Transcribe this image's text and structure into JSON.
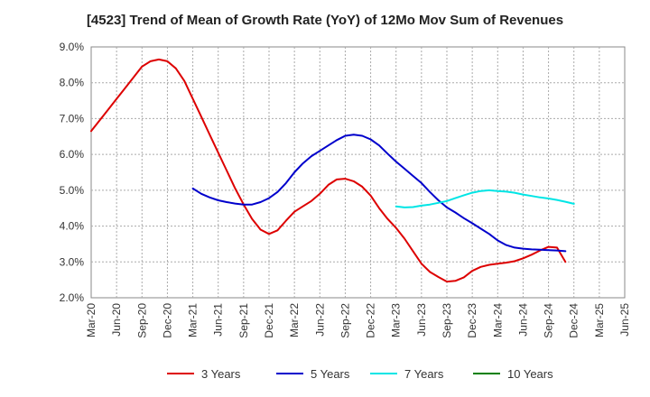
{
  "chart_data": {
    "type": "line",
    "title": "[4523]  Trend of Mean of Growth Rate (YoY) of 12Mo Mov Sum of Revenues",
    "xlabel": "",
    "ylabel": "",
    "ylim": [
      2.0,
      9.0
    ],
    "y_ticks": [
      2.0,
      3.0,
      4.0,
      5.0,
      6.0,
      7.0,
      8.0,
      9.0
    ],
    "y_tick_labels": [
      "2.0%",
      "3.0%",
      "4.0%",
      "5.0%",
      "6.0%",
      "7.0%",
      "8.0%",
      "9.0%"
    ],
    "x_tick_labels": [
      "Mar-20",
      "Jun-20",
      "Sep-20",
      "Dec-20",
      "Mar-21",
      "Jun-21",
      "Sep-21",
      "Dec-21",
      "Mar-22",
      "Jun-22",
      "Sep-22",
      "Dec-22",
      "Mar-23",
      "Jun-23",
      "Sep-23",
      "Dec-23",
      "Mar-24",
      "Jun-24",
      "Sep-24",
      "Dec-24",
      "Mar-25",
      "Jun-25"
    ],
    "grid": true,
    "legend_position": "bottom",
    "series": [
      {
        "name": "3 Years",
        "color": "#dd0000",
        "start_index": 0,
        "values": [
          6.65,
          6.95,
          7.25,
          7.55,
          7.85,
          8.15,
          8.45,
          8.6,
          8.65,
          8.6,
          8.4,
          8.05,
          7.55,
          7.05,
          6.55,
          6.05,
          5.55,
          5.05,
          4.6,
          4.2,
          3.9,
          3.78,
          3.88,
          4.15,
          4.4,
          4.55,
          4.7,
          4.9,
          5.15,
          5.3,
          5.32,
          5.25,
          5.1,
          4.85,
          4.5,
          4.2,
          3.95,
          3.65,
          3.3,
          2.95,
          2.72,
          2.58,
          2.45,
          2.47,
          2.57,
          2.75,
          2.86,
          2.92,
          2.95,
          2.98,
          3.02,
          3.1,
          3.2,
          3.32,
          3.42,
          3.4,
          3.0
        ]
      },
      {
        "name": "5 Years",
        "color": "#0000cc",
        "start_index": 12,
        "values": [
          5.05,
          4.9,
          4.8,
          4.72,
          4.67,
          4.63,
          4.6,
          4.6,
          4.67,
          4.78,
          4.95,
          5.2,
          5.5,
          5.75,
          5.95,
          6.1,
          6.25,
          6.4,
          6.52,
          6.55,
          6.52,
          6.42,
          6.25,
          6.02,
          5.8,
          5.6,
          5.4,
          5.2,
          4.95,
          4.72,
          4.52,
          4.38,
          4.22,
          4.08,
          3.93,
          3.78,
          3.6,
          3.47,
          3.4,
          3.37,
          3.35,
          3.34,
          3.33,
          3.32,
          3.3
        ]
      },
      {
        "name": "7 Years",
        "color": "#00e5e5",
        "start_index": 36,
        "values": [
          4.55,
          4.52,
          4.53,
          4.57,
          4.6,
          4.65,
          4.7,
          4.78,
          4.86,
          4.93,
          4.98,
          5.0,
          4.98,
          4.96,
          4.93,
          4.88,
          4.84,
          4.8,
          4.77,
          4.73,
          4.68,
          4.62
        ]
      },
      {
        "name": "10 Years",
        "color": "#008000",
        "start_index": 0,
        "values": []
      }
    ]
  }
}
